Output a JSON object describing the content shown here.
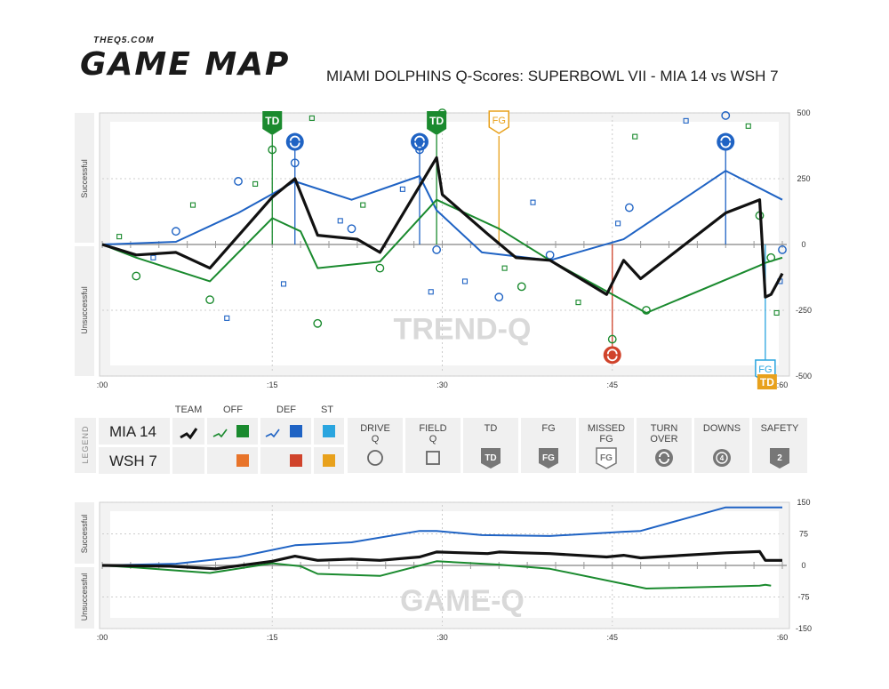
{
  "brand": {
    "small": "THEQ5.COM",
    "big": "GAME MAP"
  },
  "title": "MIAMI DOLPHINS Q-Scores: SUPERBOWL VII - MIA 14 vs WSH 7",
  "colors": {
    "team": "#111111",
    "off": "#1a8a2e",
    "def": "#1f63c4",
    "st": "#2aa5df",
    "off_opp": "#e8742a",
    "def_opp": "#d0432b",
    "st_opp": "#e8a11c",
    "turnover_opp": "#d0432b",
    "fg": "#e8a11c"
  },
  "chart_data": [
    {
      "type": "line",
      "title": "",
      "watermark": "TREND-Q",
      "xlabel": "",
      "ylabel_top": "Successful",
      "ylabel_bottom": "Unsuccessful",
      "xlim": [
        0,
        60
      ],
      "ylim": [
        -500,
        500
      ],
      "x_ticks": [
        ":00",
        ":15",
        ":30",
        ":45",
        ":60"
      ],
      "y_ticks": [
        "500",
        "250",
        "0",
        "-250",
        "-500"
      ],
      "series": [
        {
          "name": "TEAM",
          "points": [
            [
              0,
              0
            ],
            [
              3,
              -40
            ],
            [
              6.5,
              -30
            ],
            [
              9.5,
              -90
            ],
            [
              15,
              180
            ],
            [
              17,
              250
            ],
            [
              19,
              35
            ],
            [
              22.5,
              20
            ],
            [
              24.5,
              -30
            ],
            [
              29.5,
              330
            ],
            [
              30,
              190
            ],
            [
              34,
              40
            ],
            [
              36.5,
              -50
            ],
            [
              39.5,
              -60
            ],
            [
              44.5,
              -190
            ],
            [
              46,
              -60
            ],
            [
              47.5,
              -130
            ],
            [
              55,
              120
            ],
            [
              58,
              170
            ],
            [
              58.5,
              -200
            ],
            [
              59,
              -190
            ],
            [
              60,
              -110
            ]
          ]
        },
        {
          "name": "OFF",
          "points": [
            [
              0,
              0
            ],
            [
              3,
              -50
            ],
            [
              9.5,
              -140
            ],
            [
              15,
              100
            ],
            [
              17.5,
              50
            ],
            [
              19,
              -90
            ],
            [
              24.5,
              -65
            ],
            [
              29.5,
              170
            ],
            [
              35,
              60
            ],
            [
              39.5,
              -60
            ],
            [
              48,
              -260
            ],
            [
              58,
              -80
            ],
            [
              58.5,
              -70
            ],
            [
              60,
              -50
            ]
          ]
        },
        {
          "name": "DEF",
          "points": [
            [
              0,
              0
            ],
            [
              6.5,
              10
            ],
            [
              12,
              120
            ],
            [
              17,
              240
            ],
            [
              22,
              170
            ],
            [
              28,
              260
            ],
            [
              29.5,
              130
            ],
            [
              33.5,
              -30
            ],
            [
              39.5,
              -60
            ],
            [
              46,
              20
            ],
            [
              55,
              280
            ],
            [
              60,
              170
            ]
          ]
        }
      ],
      "drive_q": [
        {
          "x": 3,
          "y": -120,
          "c": "off"
        },
        {
          "x": 6.5,
          "y": 50,
          "c": "def"
        },
        {
          "x": 9.5,
          "y": -210,
          "c": "off"
        },
        {
          "x": 12,
          "y": 240,
          "c": "def"
        },
        {
          "x": 15,
          "y": 360,
          "c": "off"
        },
        {
          "x": 17,
          "y": 310,
          "c": "def"
        },
        {
          "x": 19,
          "y": -300,
          "c": "off"
        },
        {
          "x": 22,
          "y": 60,
          "c": "def"
        },
        {
          "x": 24.5,
          "y": -90,
          "c": "off"
        },
        {
          "x": 28,
          "y": 360,
          "c": "def"
        },
        {
          "x": 29.5,
          "y": -20,
          "c": "def"
        },
        {
          "x": 30,
          "y": 500,
          "c": "off"
        },
        {
          "x": 35,
          "y": -200,
          "c": "def"
        },
        {
          "x": 37,
          "y": -160,
          "c": "off"
        },
        {
          "x": 39.5,
          "y": -40,
          "c": "def"
        },
        {
          "x": 45,
          "y": -360,
          "c": "off"
        },
        {
          "x": 46.5,
          "y": 140,
          "c": "def"
        },
        {
          "x": 48,
          "y": -250,
          "c": "off"
        },
        {
          "x": 55,
          "y": 490,
          "c": "def"
        },
        {
          "x": 58,
          "y": 110,
          "c": "off"
        },
        {
          "x": 59,
          "y": -50,
          "c": "off"
        },
        {
          "x": 60,
          "y": -20,
          "c": "def"
        }
      ],
      "field_q": [
        {
          "x": 1.5,
          "y": 30,
          "c": "off"
        },
        {
          "x": 4.5,
          "y": -50,
          "c": "def"
        },
        {
          "x": 8,
          "y": 150,
          "c": "off"
        },
        {
          "x": 11,
          "y": -280,
          "c": "def"
        },
        {
          "x": 13.5,
          "y": 230,
          "c": "off"
        },
        {
          "x": 16,
          "y": -150,
          "c": "def"
        },
        {
          "x": 18.5,
          "y": 480,
          "c": "off"
        },
        {
          "x": 21,
          "y": 90,
          "c": "def"
        },
        {
          "x": 23,
          "y": 150,
          "c": "off"
        },
        {
          "x": 26.5,
          "y": 210,
          "c": "def"
        },
        {
          "x": 29,
          "y": -180,
          "c": "def"
        },
        {
          "x": 32,
          "y": -140,
          "c": "def"
        },
        {
          "x": 35.5,
          "y": -90,
          "c": "off"
        },
        {
          "x": 38,
          "y": 160,
          "c": "def"
        },
        {
          "x": 42,
          "y": -220,
          "c": "off"
        },
        {
          "x": 45.5,
          "y": 80,
          "c": "def"
        },
        {
          "x": 47,
          "y": 410,
          "c": "off"
        },
        {
          "x": 51.5,
          "y": 470,
          "c": "def"
        },
        {
          "x": 57,
          "y": 450,
          "c": "off"
        },
        {
          "x": 59.5,
          "y": -260,
          "c": "off"
        },
        {
          "x": 59.8,
          "y": -140,
          "c": "def"
        }
      ],
      "markers": [
        {
          "type": "TD",
          "x": 15,
          "label": "TD"
        },
        {
          "type": "TURN OVER",
          "x": 17,
          "y": 390
        },
        {
          "type": "TURN OVER",
          "x": 28,
          "y": 390
        },
        {
          "type": "TD",
          "x": 29.5,
          "label": "TD"
        },
        {
          "type": "FG",
          "x": 35,
          "label": "FG"
        },
        {
          "type": "TURN OVER OPP",
          "x": 45,
          "y": -420
        },
        {
          "type": "TURN OVER",
          "x": 55,
          "y": 390
        },
        {
          "type": "FG OPP",
          "x": 58.5,
          "label": "FG"
        },
        {
          "type": "TD OPP",
          "x": 58.5,
          "label": "TD"
        }
      ]
    },
    {
      "type": "line",
      "title": "",
      "watermark": "GAME-Q",
      "ylabel_top": "Successful",
      "ylabel_bottom": "Unsuccessful",
      "xlim": [
        0,
        60
      ],
      "ylim": [
        -150,
        150
      ],
      "x_ticks": [
        ":00",
        ":15",
        ":30",
        ":45",
        ":60"
      ],
      "y_ticks": [
        "150",
        "75",
        "0",
        "-75",
        "-150"
      ],
      "series": [
        {
          "name": "TEAM",
          "points": [
            [
              0,
              0
            ],
            [
              6,
              -2
            ],
            [
              10,
              -8
            ],
            [
              15,
              10
            ],
            [
              17,
              22
            ],
            [
              19,
              12
            ],
            [
              22,
              15
            ],
            [
              24.5,
              12
            ],
            [
              28,
              20
            ],
            [
              29.5,
              32
            ],
            [
              34,
              28
            ],
            [
              35,
              32
            ],
            [
              37,
              30
            ],
            [
              39.5,
              28
            ],
            [
              44.5,
              20
            ],
            [
              46,
              24
            ],
            [
              47.5,
              18
            ],
            [
              55,
              30
            ],
            [
              58,
              33
            ],
            [
              58.5,
              12
            ],
            [
              59,
              12
            ],
            [
              60,
              12
            ]
          ]
        },
        {
          "name": "OFF",
          "points": [
            [
              0,
              0
            ],
            [
              3,
              -5
            ],
            [
              9.5,
              -18
            ],
            [
              15,
              5
            ],
            [
              17.5,
              -2
            ],
            [
              19,
              -20
            ],
            [
              24.5,
              -25
            ],
            [
              29.5,
              10
            ],
            [
              35,
              2
            ],
            [
              39.5,
              -8
            ],
            [
              48,
              -55
            ],
            [
              58,
              -48
            ],
            [
              58.5,
              -46
            ],
            [
              59,
              -48
            ]
          ]
        },
        {
          "name": "DEF",
          "points": [
            [
              0,
              0
            ],
            [
              6.5,
              4
            ],
            [
              12,
              20
            ],
            [
              17,
              48
            ],
            [
              22,
              55
            ],
            [
              28,
              82
            ],
            [
              29.5,
              82
            ],
            [
              33.5,
              72
            ],
            [
              39.5,
              70
            ],
            [
              46,
              80
            ],
            [
              47.5,
              82
            ],
            [
              55,
              138
            ],
            [
              60,
              138
            ]
          ]
        }
      ]
    }
  ],
  "legend": {
    "side_label": "LEGEND",
    "teams": [
      "MIA 14",
      "WSH 7"
    ],
    "columns": [
      "TEAM",
      "OFF",
      "DEF",
      "ST"
    ],
    "items": [
      {
        "label1": "DRIVE",
        "label2": "Q",
        "icon": "circle-outline-icon"
      },
      {
        "label1": "FIELD",
        "label2": "Q",
        "icon": "square-outline-icon"
      },
      {
        "label1": "TD",
        "label2": "",
        "icon": "td-badge-icon",
        "glyph": "TD"
      },
      {
        "label1": "FG",
        "label2": "",
        "icon": "fg-badge-icon",
        "glyph": "FG"
      },
      {
        "label1": "MISSED",
        "label2": "FG",
        "icon": "missed-fg-badge-icon",
        "glyph": "FG"
      },
      {
        "label1": "TURN",
        "label2": "OVER",
        "icon": "turnover-icon"
      },
      {
        "label1": "DOWNS",
        "label2": "",
        "icon": "downs-icon",
        "glyph": "4"
      },
      {
        "label1": "SAFETY",
        "label2": "",
        "icon": "safety-badge-icon",
        "glyph": "2"
      }
    ]
  }
}
